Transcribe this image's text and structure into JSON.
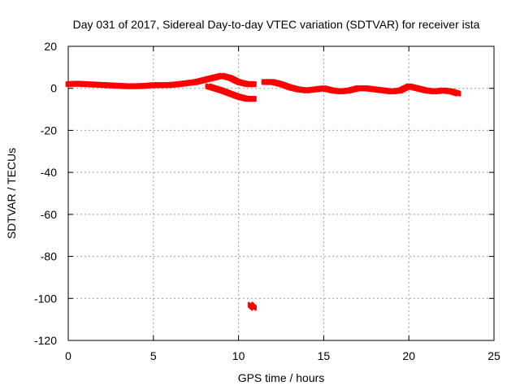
{
  "chart_data": {
    "type": "scatter",
    "title": "Day 031 of 2017, Sidereal Day-to-day VTEC variation (SDTVAR) for receiver ista",
    "xlabel": "GPS time / hours",
    "ylabel": "SDTVAR / TECUs",
    "xlim": [
      0,
      25
    ],
    "ylim": [
      -120,
      20
    ],
    "xticks": [
      0,
      5,
      10,
      15,
      20,
      25
    ],
    "yticks": [
      20,
      0,
      -20,
      -40,
      -60,
      -80,
      -100,
      -120
    ],
    "grid": true,
    "marker_color": "#ff0000",
    "series": [
      {
        "name": "main track",
        "points": [
          [
            0.0,
            2.0
          ],
          [
            0.5,
            2.2
          ],
          [
            1.0,
            2.0
          ],
          [
            1.5,
            1.8
          ],
          [
            2.0,
            1.6
          ],
          [
            2.5,
            1.4
          ],
          [
            3.0,
            1.2
          ],
          [
            3.5,
            1.0
          ],
          [
            4.0,
            1.0
          ],
          [
            4.5,
            1.2
          ],
          [
            5.0,
            1.5
          ],
          [
            5.5,
            1.5
          ],
          [
            6.0,
            1.6
          ],
          [
            6.5,
            2.0
          ],
          [
            7.0,
            2.5
          ],
          [
            7.5,
            3.0
          ],
          [
            8.0,
            4.0
          ],
          [
            8.5,
            5.0
          ],
          [
            9.0,
            6.0
          ],
          [
            9.5,
            5.0
          ],
          [
            10.0,
            3.0
          ],
          [
            10.5,
            2.0
          ],
          [
            10.9,
            2.0
          ]
        ]
      },
      {
        "name": "descending arc",
        "points": [
          [
            8.2,
            1.0
          ],
          [
            8.6,
            0.0
          ],
          [
            9.0,
            -1.0
          ],
          [
            9.5,
            -2.5
          ],
          [
            10.0,
            -4.0
          ],
          [
            10.5,
            -5.0
          ],
          [
            10.9,
            -5.0
          ]
        ]
      },
      {
        "name": "second track",
        "points": [
          [
            11.5,
            3.0
          ],
          [
            12.0,
            3.0
          ],
          [
            12.5,
            2.0
          ],
          [
            13.0,
            0.5
          ],
          [
            13.5,
            -0.5
          ],
          [
            14.0,
            -1.0
          ],
          [
            14.5,
            -0.5
          ],
          [
            15.0,
            0.0
          ],
          [
            15.5,
            -1.0
          ],
          [
            16.0,
            -1.5
          ],
          [
            16.5,
            -1.0
          ],
          [
            17.0,
            0.0
          ],
          [
            17.5,
            0.0
          ],
          [
            18.0,
            -0.5
          ],
          [
            18.5,
            -1.0
          ],
          [
            19.0,
            -1.5
          ],
          [
            19.5,
            -1.0
          ],
          [
            20.0,
            1.0
          ],
          [
            20.5,
            0.0
          ],
          [
            21.0,
            -1.0
          ],
          [
            21.5,
            -1.5
          ],
          [
            22.0,
            -1.0
          ],
          [
            22.5,
            -1.5
          ],
          [
            22.9,
            -2.5
          ]
        ]
      },
      {
        "name": "outlier",
        "points": [
          [
            10.7,
            -103.0
          ],
          [
            10.8,
            -103.8
          ],
          [
            10.9,
            -104.5
          ]
        ]
      }
    ]
  }
}
